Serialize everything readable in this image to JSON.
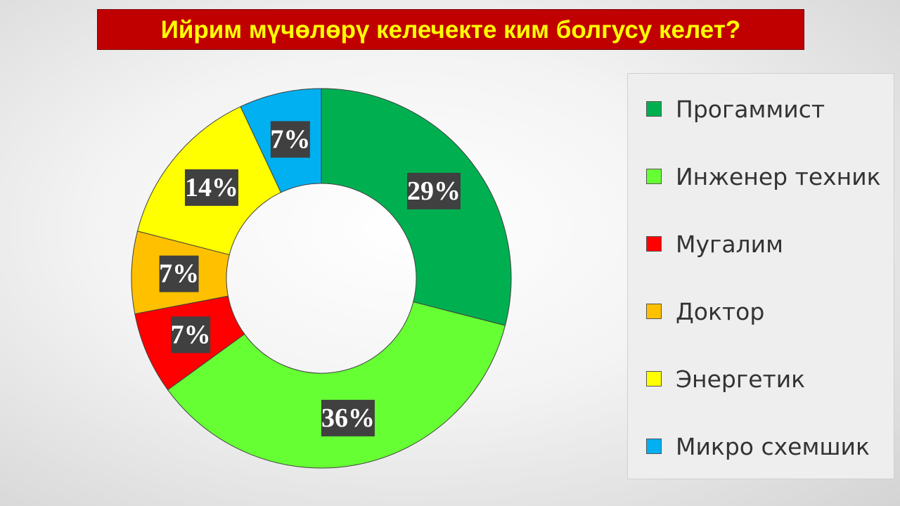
{
  "chart_data": {
    "type": "pie",
    "title": "Ийрим мүчөлөрү келечекте ким болгусу келет?",
    "hole": 0.5,
    "legend_position": "right",
    "slices": [
      {
        "label": "Прогаммист",
        "value": 29,
        "value_label": "29%",
        "color": "#00b050"
      },
      {
        "label": "Инженер техник",
        "value": 36,
        "value_label": "36%",
        "color": "#66ff33"
      },
      {
        "label": "Мугалим",
        "value": 7,
        "value_label": "7%",
        "color": "#ff0000"
      },
      {
        "label": "Доктор",
        "value": 7,
        "value_label": "7%",
        "color": "#ffc000"
      },
      {
        "label": "Энергетик",
        "value": 14,
        "value_label": "14%",
        "color": "#ffff00"
      },
      {
        "label": "Микро схемшик",
        "value": 7,
        "value_label": "7%",
        "color": "#00b0f0"
      }
    ]
  },
  "colors": {
    "title_background": "#c00000",
    "title_text": "#ffff00",
    "label_background": "#404040",
    "label_text": "#ffffff"
  }
}
